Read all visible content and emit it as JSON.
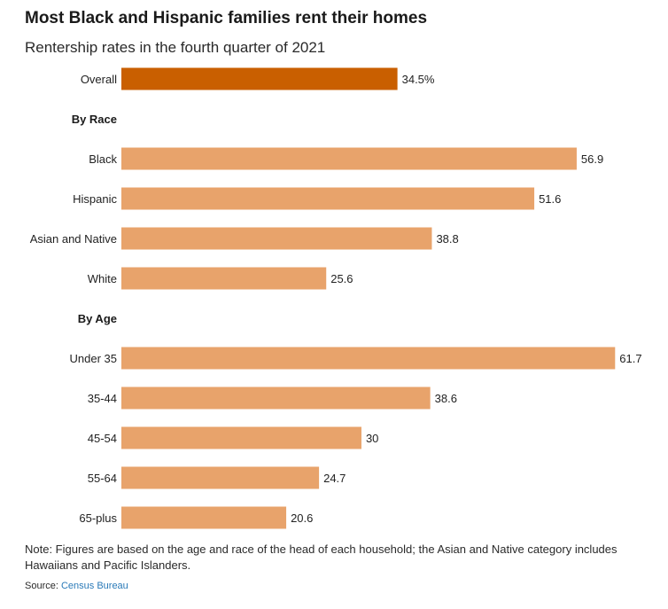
{
  "colors": {
    "highlight": "#c95f00",
    "bar": "#e8a36b",
    "link": "#2a7ab8"
  },
  "chart_data": {
    "type": "bar",
    "orientation": "horizontal",
    "title": "Most Black and Hispanic families rent their homes",
    "subtitle": "Rentership rates in the fourth quarter of 2021",
    "xlim": [
      0,
      62
    ],
    "grid": false,
    "rows": [
      {
        "kind": "bar",
        "label": "Overall",
        "value": 34.5,
        "value_label": "34.5%",
        "highlight": true
      },
      {
        "kind": "group",
        "label": "By Race"
      },
      {
        "kind": "bar",
        "label": "Black",
        "value": 56.9,
        "value_label": "56.9",
        "highlight": false
      },
      {
        "kind": "bar",
        "label": "Hispanic",
        "value": 51.6,
        "value_label": "51.6",
        "highlight": false
      },
      {
        "kind": "bar",
        "label": "Asian and Native",
        "value": 38.8,
        "value_label": "38.8",
        "highlight": false
      },
      {
        "kind": "bar",
        "label": "White",
        "value": 25.6,
        "value_label": "25.6",
        "highlight": false
      },
      {
        "kind": "group",
        "label": "By Age"
      },
      {
        "kind": "bar",
        "label": "Under 35",
        "value": 61.7,
        "value_label": "61.7",
        "highlight": false
      },
      {
        "kind": "bar",
        "label": "35-44",
        "value": 38.6,
        "value_label": "38.6",
        "highlight": false
      },
      {
        "kind": "bar",
        "label": "45-54",
        "value": 30,
        "value_label": "30",
        "highlight": false
      },
      {
        "kind": "bar",
        "label": "55-64",
        "value": 24.7,
        "value_label": "24.7",
        "highlight": false
      },
      {
        "kind": "bar",
        "label": "65-plus",
        "value": 20.6,
        "value_label": "20.6",
        "highlight": false
      }
    ]
  },
  "footer": {
    "note": "Note: Figures are based on the age and race of the head of each household; the Asian and Native category includes Hawaiians and Pacific Islanders.",
    "source_prefix": "Source: ",
    "source_link": "Census Bureau"
  }
}
